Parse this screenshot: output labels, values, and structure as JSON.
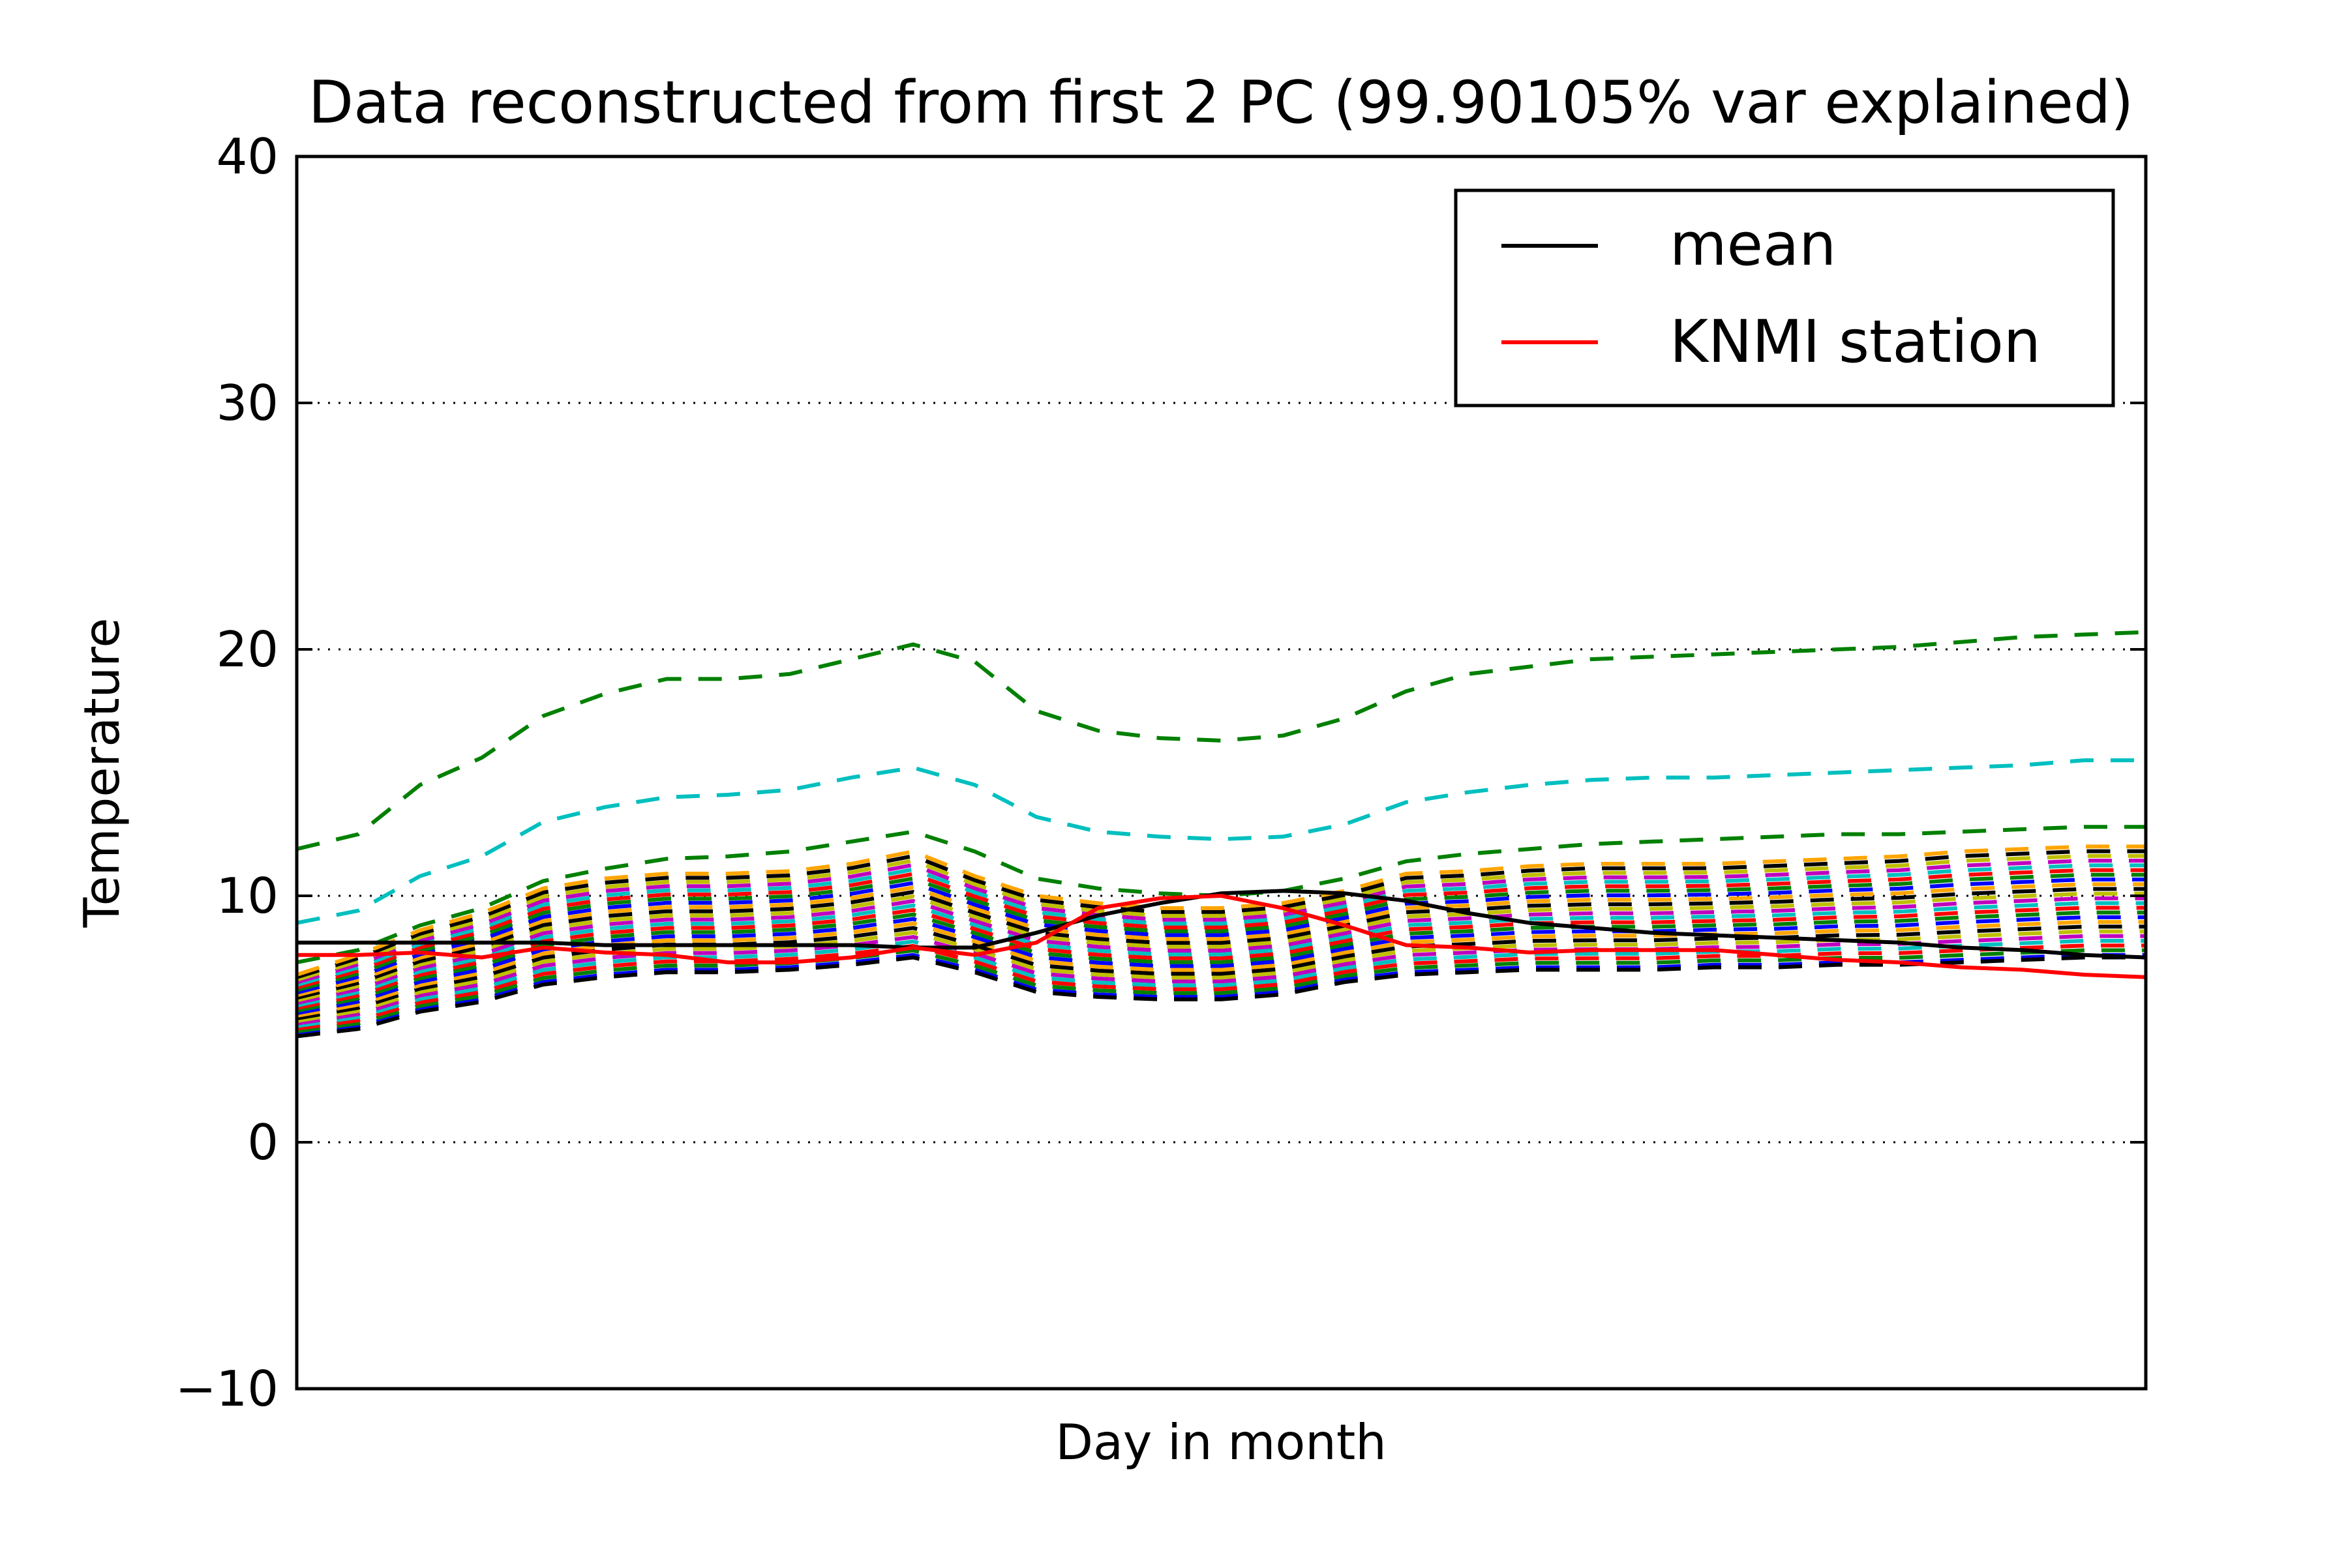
{
  "chart_data": {
    "type": "line",
    "title": "Data reconstructed from first 2 PC (99.90105% var explained)",
    "xlabel": "Day in month",
    "ylabel": "Temperature",
    "xlim": [
      0,
      30
    ],
    "ylim": [
      -10,
      40
    ],
    "yticks": [
      -10,
      0,
      10,
      20,
      30,
      40
    ],
    "grid": "horizontal dotted",
    "legend": {
      "placement": "top-right",
      "entries": [
        {
          "label": "mean",
          "color": "#000000"
        },
        {
          "label": "KNMI station",
          "color": "#ff0000"
        }
      ]
    },
    "colors": {
      "ensemble_cycle": [
        "#0000ff",
        "#008000",
        "#ff0000",
        "#00bfbf",
        "#bf00bf",
        "#bfbf00",
        "#000000",
        "#ffa500"
      ],
      "upper_outer": "#008000",
      "upper_inner": "#00bfbf",
      "lower_envelope": "#000000",
      "mean": "#000000",
      "station": "#ff0000"
    },
    "x": [
      0,
      1,
      2,
      3,
      4,
      5,
      6,
      7,
      8,
      9,
      10,
      11,
      12,
      13,
      14,
      15,
      16,
      17,
      18,
      19,
      20,
      21,
      22,
      23,
      24,
      25,
      26,
      27,
      28,
      29,
      30
    ],
    "ensemble": {
      "count": 24,
      "bottom": [
        4.4,
        4.7,
        5.4,
        5.8,
        6.5,
        6.8,
        7.0,
        7.0,
        7.1,
        7.3,
        7.6,
        7.0,
        6.2,
        6.0,
        5.9,
        5.9,
        6.1,
        6.6,
        6.9,
        7.0,
        7.1,
        7.1,
        7.1,
        7.2,
        7.2,
        7.3,
        7.3,
        7.4,
        7.5,
        7.6,
        7.6
      ],
      "top": [
        6.8,
        7.6,
        8.6,
        9.3,
        10.3,
        10.7,
        10.9,
        10.9,
        11.0,
        11.3,
        11.8,
        10.8,
        10.0,
        9.7,
        9.5,
        9.5,
        9.7,
        10.2,
        10.9,
        11.0,
        11.2,
        11.3,
        11.3,
        11.3,
        11.4,
        11.5,
        11.6,
        11.8,
        11.9,
        12.0,
        12.0
      ]
    },
    "series": [
      {
        "role": "upper-outer",
        "style": "dashed",
        "values": [
          11.9,
          12.5,
          14.5,
          15.6,
          17.3,
          18.2,
          18.8,
          18.8,
          19.0,
          19.6,
          20.2,
          19.5,
          17.5,
          16.7,
          16.4,
          16.3,
          16.5,
          17.2,
          18.3,
          19.0,
          19.3,
          19.6,
          19.7,
          19.8,
          19.9,
          20.0,
          20.1,
          20.3,
          20.5,
          20.6,
          20.7
        ]
      },
      {
        "role": "upper-inner",
        "style": "dashed",
        "values": [
          8.9,
          9.4,
          10.8,
          11.6,
          13.0,
          13.6,
          14.0,
          14.1,
          14.3,
          14.8,
          15.2,
          14.5,
          13.2,
          12.6,
          12.4,
          12.3,
          12.4,
          12.9,
          13.8,
          14.2,
          14.5,
          14.7,
          14.8,
          14.8,
          14.9,
          15.0,
          15.1,
          15.2,
          15.3,
          15.5,
          15.5
        ]
      },
      {
        "role": "upper-band",
        "style": "dashed",
        "values": [
          7.3,
          7.8,
          8.8,
          9.5,
          10.6,
          11.1,
          11.5,
          11.6,
          11.8,
          12.2,
          12.6,
          11.8,
          10.7,
          10.3,
          10.1,
          10.0,
          10.2,
          10.7,
          11.4,
          11.7,
          11.9,
          12.1,
          12.2,
          12.3,
          12.4,
          12.5,
          12.5,
          12.6,
          12.7,
          12.8,
          12.8
        ]
      },
      {
        "role": "lower-envelope",
        "style": "dashed",
        "values": [
          4.3,
          4.6,
          5.3,
          5.7,
          6.4,
          6.7,
          6.9,
          6.9,
          7.0,
          7.2,
          7.5,
          6.9,
          6.1,
          5.9,
          5.8,
          5.8,
          6.0,
          6.5,
          6.8,
          6.9,
          7.0,
          7.0,
          7.0,
          7.1,
          7.1,
          7.2,
          7.2,
          7.3,
          7.4,
          7.5,
          7.5
        ]
      },
      {
        "name": "mean",
        "style": "solid",
        "values": [
          8.1,
          8.1,
          8.1,
          8.1,
          8.1,
          8.0,
          8.0,
          8.0,
          8.0,
          8.0,
          7.9,
          7.9,
          8.5,
          9.2,
          9.7,
          10.1,
          10.2,
          10.1,
          9.8,
          9.3,
          8.9,
          8.7,
          8.5,
          8.4,
          8.3,
          8.2,
          8.1,
          7.9,
          7.8,
          7.6,
          7.5
        ]
      },
      {
        "name": "KNMI station",
        "style": "solid",
        "values": [
          7.6,
          7.6,
          7.7,
          7.5,
          7.9,
          7.7,
          7.6,
          7.3,
          7.3,
          7.5,
          7.9,
          7.6,
          8.1,
          9.5,
          9.9,
          10.0,
          9.5,
          8.8,
          8.0,
          7.9,
          7.7,
          7.8,
          7.8,
          7.8,
          7.6,
          7.4,
          7.3,
          7.1,
          7.0,
          6.8,
          6.7
        ]
      }
    ]
  }
}
